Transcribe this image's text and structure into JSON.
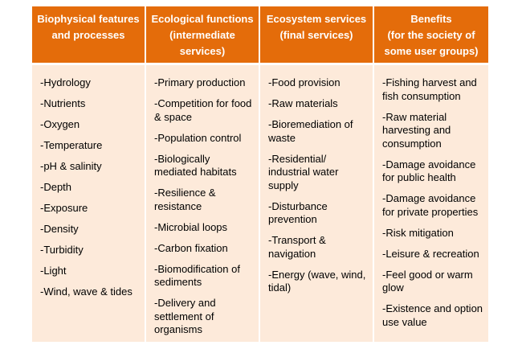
{
  "headers": [
    [
      "Biophysical features",
      "and processes"
    ],
    [
      "Ecological functions",
      "(intermediate",
      "services)"
    ],
    [
      "Ecosystem services",
      "(final services)"
    ],
    [
      "Benefits",
      "(for the society of",
      "some user groups)"
    ]
  ],
  "columns": [
    [
      [
        "-Hydrology"
      ],
      [
        "-Nutrients"
      ],
      [
        "-Oxygen"
      ],
      [
        "-Temperature"
      ],
      [
        "-pH & salinity"
      ],
      [
        "-Depth"
      ],
      [
        "-Exposure"
      ],
      [
        "-Density"
      ],
      [
        "-Turbidity"
      ],
      [
        "-Light"
      ],
      [
        "-Wind, wave & tides"
      ]
    ],
    [
      [
        "-Primary production"
      ],
      [
        "-Competition for food",
        "& space"
      ],
      [
        "-Population control"
      ],
      [
        "-Biologically",
        "mediated habitats"
      ],
      [
        "-Resilience &",
        "resistance"
      ],
      [
        "-Microbial loops"
      ],
      [
        "-Carbon fixation"
      ],
      [
        "-Biomodification of",
        "sediments"
      ],
      [
        "-Delivery and",
        "settlement of",
        "organisms"
      ]
    ],
    [
      [
        "-Food provision"
      ],
      [
        "-Raw materials"
      ],
      [
        "-Bioremediation of",
        "waste"
      ],
      [
        "-Residential/",
        "industrial water",
        "supply"
      ],
      [
        "-Disturbance",
        "prevention"
      ],
      [
        "-Transport &",
        "navigation"
      ],
      [
        "-Energy (wave, wind,",
        "tidal)"
      ]
    ],
    [
      [
        "-Fishing harvest and",
        "fish consumption"
      ],
      [
        "-Raw material",
        "harvesting and",
        "consumption"
      ],
      [
        "-Damage avoidance",
        "for public health"
      ],
      [
        "-Damage avoidance",
        "for private properties"
      ],
      [
        "-Risk mitigation"
      ],
      [
        "-Leisure & recreation"
      ],
      [
        "-Feel good or warm",
        "glow"
      ],
      [
        "-Existence and option",
        "use value"
      ]
    ]
  ],
  "colors": {
    "header_bg": "#E46C0A",
    "body_bg": "#FDEADA"
  }
}
